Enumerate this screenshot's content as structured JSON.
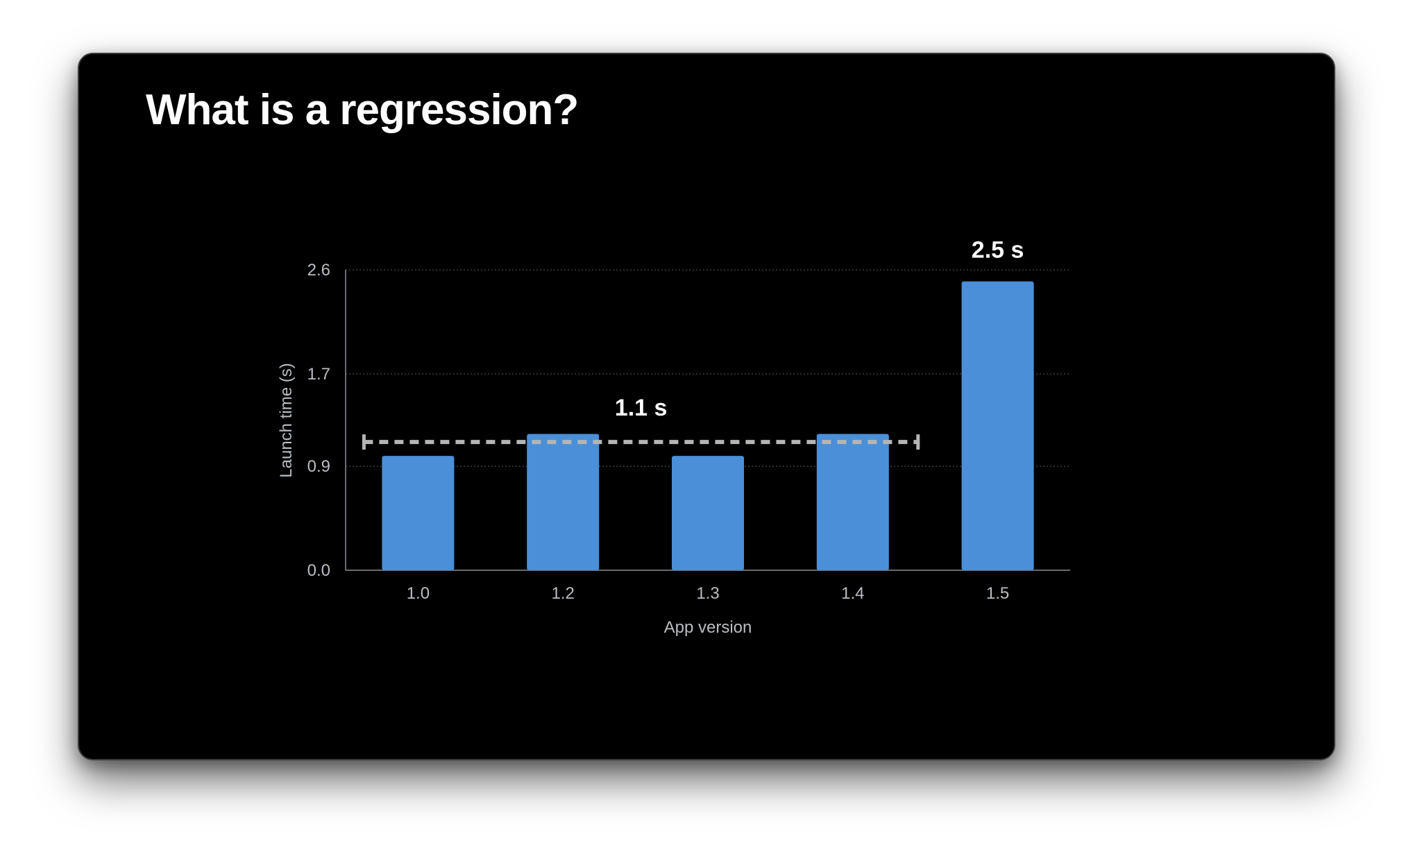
{
  "slide": {
    "title": "What is a regression?",
    "background": "#000000"
  },
  "chart_data": {
    "type": "bar",
    "categories": [
      "1.0",
      "1.2",
      "1.3",
      "1.4",
      "1.5"
    ],
    "values": [
      0.99,
      1.18,
      0.99,
      1.18,
      2.5
    ],
    "xlabel": "App version",
    "ylabel": "Launch time (s)",
    "yticks": [
      0.0,
      0.9,
      1.7,
      2.6
    ],
    "ytick_labels": [
      "0.0",
      "0.9",
      "1.7",
      "2.6"
    ],
    "ylim": [
      0,
      2.6
    ],
    "grid": true,
    "bar_color": "#4a8fd8",
    "annotations": [
      {
        "label": "1.1 s",
        "kind": "dashed-average-line",
        "value": 1.11,
        "from_category": "1.0",
        "to_category": "1.4"
      },
      {
        "label": "2.5 s",
        "kind": "bar-value-label",
        "category": "1.5"
      }
    ]
  }
}
